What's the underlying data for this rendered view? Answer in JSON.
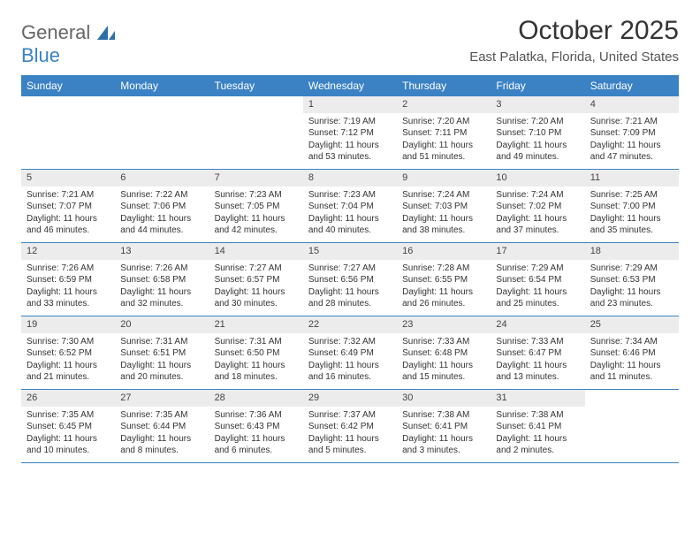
{
  "brand": {
    "part1": "General",
    "part2": "Blue"
  },
  "title": "October 2025",
  "location": "East Palatka, Florida, United States",
  "colors": {
    "header_bg": "#3b82c4",
    "header_text": "#ffffff",
    "daynum_bg": "#ececec",
    "border": "#3b82c4",
    "text": "#333333"
  },
  "typography": {
    "title_fontsize": 30,
    "location_fontsize": 15,
    "weekday_fontsize": 12,
    "body_fontsize": 10
  },
  "weekdays": [
    "Sunday",
    "Monday",
    "Tuesday",
    "Wednesday",
    "Thursday",
    "Friday",
    "Saturday"
  ],
  "weeks": [
    [
      {
        "empty": true
      },
      {
        "empty": true
      },
      {
        "empty": true
      },
      {
        "num": "1",
        "sunrise": "Sunrise: 7:19 AM",
        "sunset": "Sunset: 7:12 PM",
        "daylight1": "Daylight: 11 hours",
        "daylight2": "and 53 minutes."
      },
      {
        "num": "2",
        "sunrise": "Sunrise: 7:20 AM",
        "sunset": "Sunset: 7:11 PM",
        "daylight1": "Daylight: 11 hours",
        "daylight2": "and 51 minutes."
      },
      {
        "num": "3",
        "sunrise": "Sunrise: 7:20 AM",
        "sunset": "Sunset: 7:10 PM",
        "daylight1": "Daylight: 11 hours",
        "daylight2": "and 49 minutes."
      },
      {
        "num": "4",
        "sunrise": "Sunrise: 7:21 AM",
        "sunset": "Sunset: 7:09 PM",
        "daylight1": "Daylight: 11 hours",
        "daylight2": "and 47 minutes."
      }
    ],
    [
      {
        "num": "5",
        "sunrise": "Sunrise: 7:21 AM",
        "sunset": "Sunset: 7:07 PM",
        "daylight1": "Daylight: 11 hours",
        "daylight2": "and 46 minutes."
      },
      {
        "num": "6",
        "sunrise": "Sunrise: 7:22 AM",
        "sunset": "Sunset: 7:06 PM",
        "daylight1": "Daylight: 11 hours",
        "daylight2": "and 44 minutes."
      },
      {
        "num": "7",
        "sunrise": "Sunrise: 7:23 AM",
        "sunset": "Sunset: 7:05 PM",
        "daylight1": "Daylight: 11 hours",
        "daylight2": "and 42 minutes."
      },
      {
        "num": "8",
        "sunrise": "Sunrise: 7:23 AM",
        "sunset": "Sunset: 7:04 PM",
        "daylight1": "Daylight: 11 hours",
        "daylight2": "and 40 minutes."
      },
      {
        "num": "9",
        "sunrise": "Sunrise: 7:24 AM",
        "sunset": "Sunset: 7:03 PM",
        "daylight1": "Daylight: 11 hours",
        "daylight2": "and 38 minutes."
      },
      {
        "num": "10",
        "sunrise": "Sunrise: 7:24 AM",
        "sunset": "Sunset: 7:02 PM",
        "daylight1": "Daylight: 11 hours",
        "daylight2": "and 37 minutes."
      },
      {
        "num": "11",
        "sunrise": "Sunrise: 7:25 AM",
        "sunset": "Sunset: 7:00 PM",
        "daylight1": "Daylight: 11 hours",
        "daylight2": "and 35 minutes."
      }
    ],
    [
      {
        "num": "12",
        "sunrise": "Sunrise: 7:26 AM",
        "sunset": "Sunset: 6:59 PM",
        "daylight1": "Daylight: 11 hours",
        "daylight2": "and 33 minutes."
      },
      {
        "num": "13",
        "sunrise": "Sunrise: 7:26 AM",
        "sunset": "Sunset: 6:58 PM",
        "daylight1": "Daylight: 11 hours",
        "daylight2": "and 32 minutes."
      },
      {
        "num": "14",
        "sunrise": "Sunrise: 7:27 AM",
        "sunset": "Sunset: 6:57 PM",
        "daylight1": "Daylight: 11 hours",
        "daylight2": "and 30 minutes."
      },
      {
        "num": "15",
        "sunrise": "Sunrise: 7:27 AM",
        "sunset": "Sunset: 6:56 PM",
        "daylight1": "Daylight: 11 hours",
        "daylight2": "and 28 minutes."
      },
      {
        "num": "16",
        "sunrise": "Sunrise: 7:28 AM",
        "sunset": "Sunset: 6:55 PM",
        "daylight1": "Daylight: 11 hours",
        "daylight2": "and 26 minutes."
      },
      {
        "num": "17",
        "sunrise": "Sunrise: 7:29 AM",
        "sunset": "Sunset: 6:54 PM",
        "daylight1": "Daylight: 11 hours",
        "daylight2": "and 25 minutes."
      },
      {
        "num": "18",
        "sunrise": "Sunrise: 7:29 AM",
        "sunset": "Sunset: 6:53 PM",
        "daylight1": "Daylight: 11 hours",
        "daylight2": "and 23 minutes."
      }
    ],
    [
      {
        "num": "19",
        "sunrise": "Sunrise: 7:30 AM",
        "sunset": "Sunset: 6:52 PM",
        "daylight1": "Daylight: 11 hours",
        "daylight2": "and 21 minutes."
      },
      {
        "num": "20",
        "sunrise": "Sunrise: 7:31 AM",
        "sunset": "Sunset: 6:51 PM",
        "daylight1": "Daylight: 11 hours",
        "daylight2": "and 20 minutes."
      },
      {
        "num": "21",
        "sunrise": "Sunrise: 7:31 AM",
        "sunset": "Sunset: 6:50 PM",
        "daylight1": "Daylight: 11 hours",
        "daylight2": "and 18 minutes."
      },
      {
        "num": "22",
        "sunrise": "Sunrise: 7:32 AM",
        "sunset": "Sunset: 6:49 PM",
        "daylight1": "Daylight: 11 hours",
        "daylight2": "and 16 minutes."
      },
      {
        "num": "23",
        "sunrise": "Sunrise: 7:33 AM",
        "sunset": "Sunset: 6:48 PM",
        "daylight1": "Daylight: 11 hours",
        "daylight2": "and 15 minutes."
      },
      {
        "num": "24",
        "sunrise": "Sunrise: 7:33 AM",
        "sunset": "Sunset: 6:47 PM",
        "daylight1": "Daylight: 11 hours",
        "daylight2": "and 13 minutes."
      },
      {
        "num": "25",
        "sunrise": "Sunrise: 7:34 AM",
        "sunset": "Sunset: 6:46 PM",
        "daylight1": "Daylight: 11 hours",
        "daylight2": "and 11 minutes."
      }
    ],
    [
      {
        "num": "26",
        "sunrise": "Sunrise: 7:35 AM",
        "sunset": "Sunset: 6:45 PM",
        "daylight1": "Daylight: 11 hours",
        "daylight2": "and 10 minutes."
      },
      {
        "num": "27",
        "sunrise": "Sunrise: 7:35 AM",
        "sunset": "Sunset: 6:44 PM",
        "daylight1": "Daylight: 11 hours",
        "daylight2": "and 8 minutes."
      },
      {
        "num": "28",
        "sunrise": "Sunrise: 7:36 AM",
        "sunset": "Sunset: 6:43 PM",
        "daylight1": "Daylight: 11 hours",
        "daylight2": "and 6 minutes."
      },
      {
        "num": "29",
        "sunrise": "Sunrise: 7:37 AM",
        "sunset": "Sunset: 6:42 PM",
        "daylight1": "Daylight: 11 hours",
        "daylight2": "and 5 minutes."
      },
      {
        "num": "30",
        "sunrise": "Sunrise: 7:38 AM",
        "sunset": "Sunset: 6:41 PM",
        "daylight1": "Daylight: 11 hours",
        "daylight2": "and 3 minutes."
      },
      {
        "num": "31",
        "sunrise": "Sunrise: 7:38 AM",
        "sunset": "Sunset: 6:41 PM",
        "daylight1": "Daylight: 11 hours",
        "daylight2": "and 2 minutes."
      },
      {
        "empty": true
      }
    ]
  ]
}
